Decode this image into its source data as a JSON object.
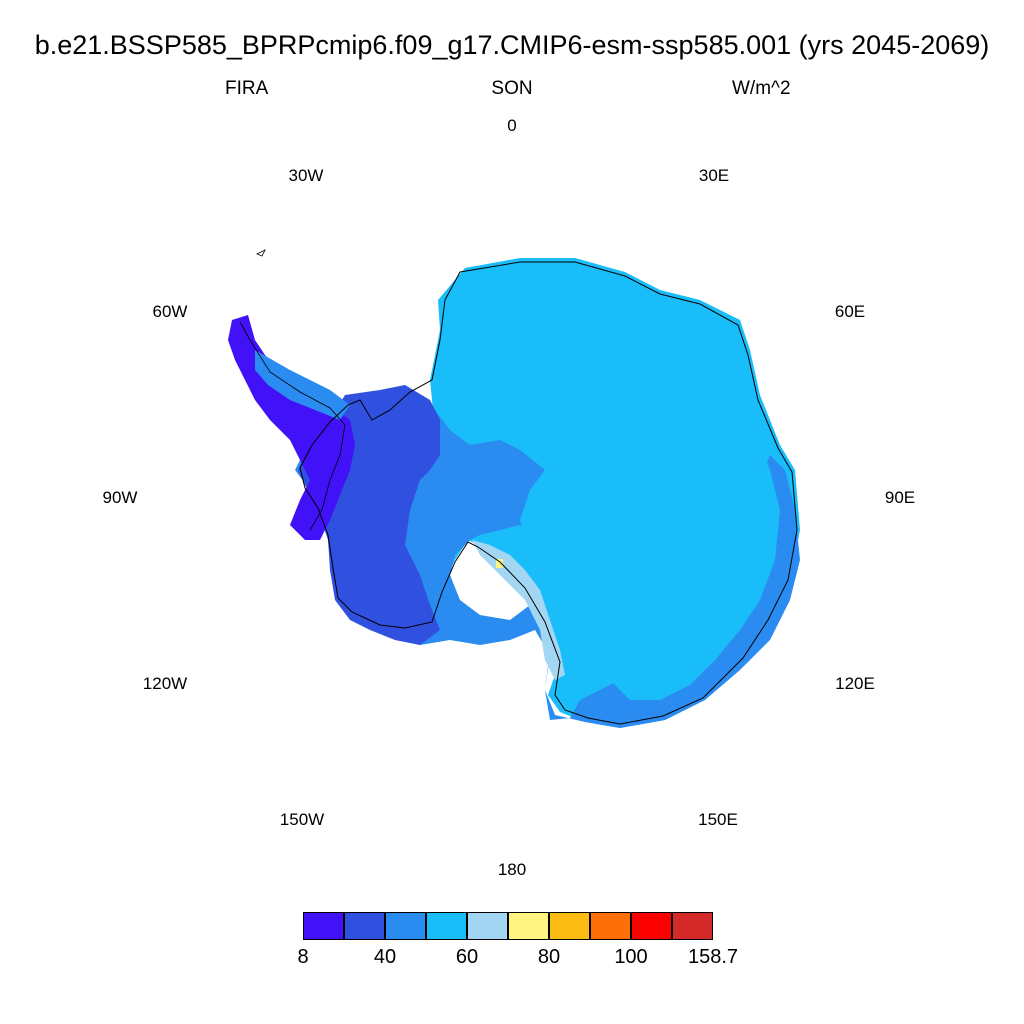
{
  "title": "b.e21.BSSP585_BPRPcmip6.f09_g17.CMIP6-esm-ssp585.001 (yrs 2045-2069)",
  "left_label": "FIRA",
  "center_label": "SON",
  "right_label": "W/m^2",
  "longitude_labels": {
    "n0": "0",
    "n30e": "30E",
    "n60e": "60E",
    "n90e": "90E",
    "n120e": "120E",
    "n150e": "150E",
    "n180": "180",
    "n150w": "150W",
    "n120w": "120W",
    "n90w": "90W",
    "n60w": "60W",
    "n30w": "30W"
  },
  "colorbar": {
    "colors": [
      "#4112f8",
      "#3050e0",
      "#2a8cf0",
      "#18bdf9",
      "#a3d6f3",
      "#fff480",
      "#fdbc14",
      "#fd7008",
      "#fc0000",
      "#d52a2a"
    ],
    "labels": {
      "l8": "8",
      "l40": "40",
      "l60": "60",
      "l80": "80",
      "l100": "100",
      "l158": "158.7"
    }
  }
}
